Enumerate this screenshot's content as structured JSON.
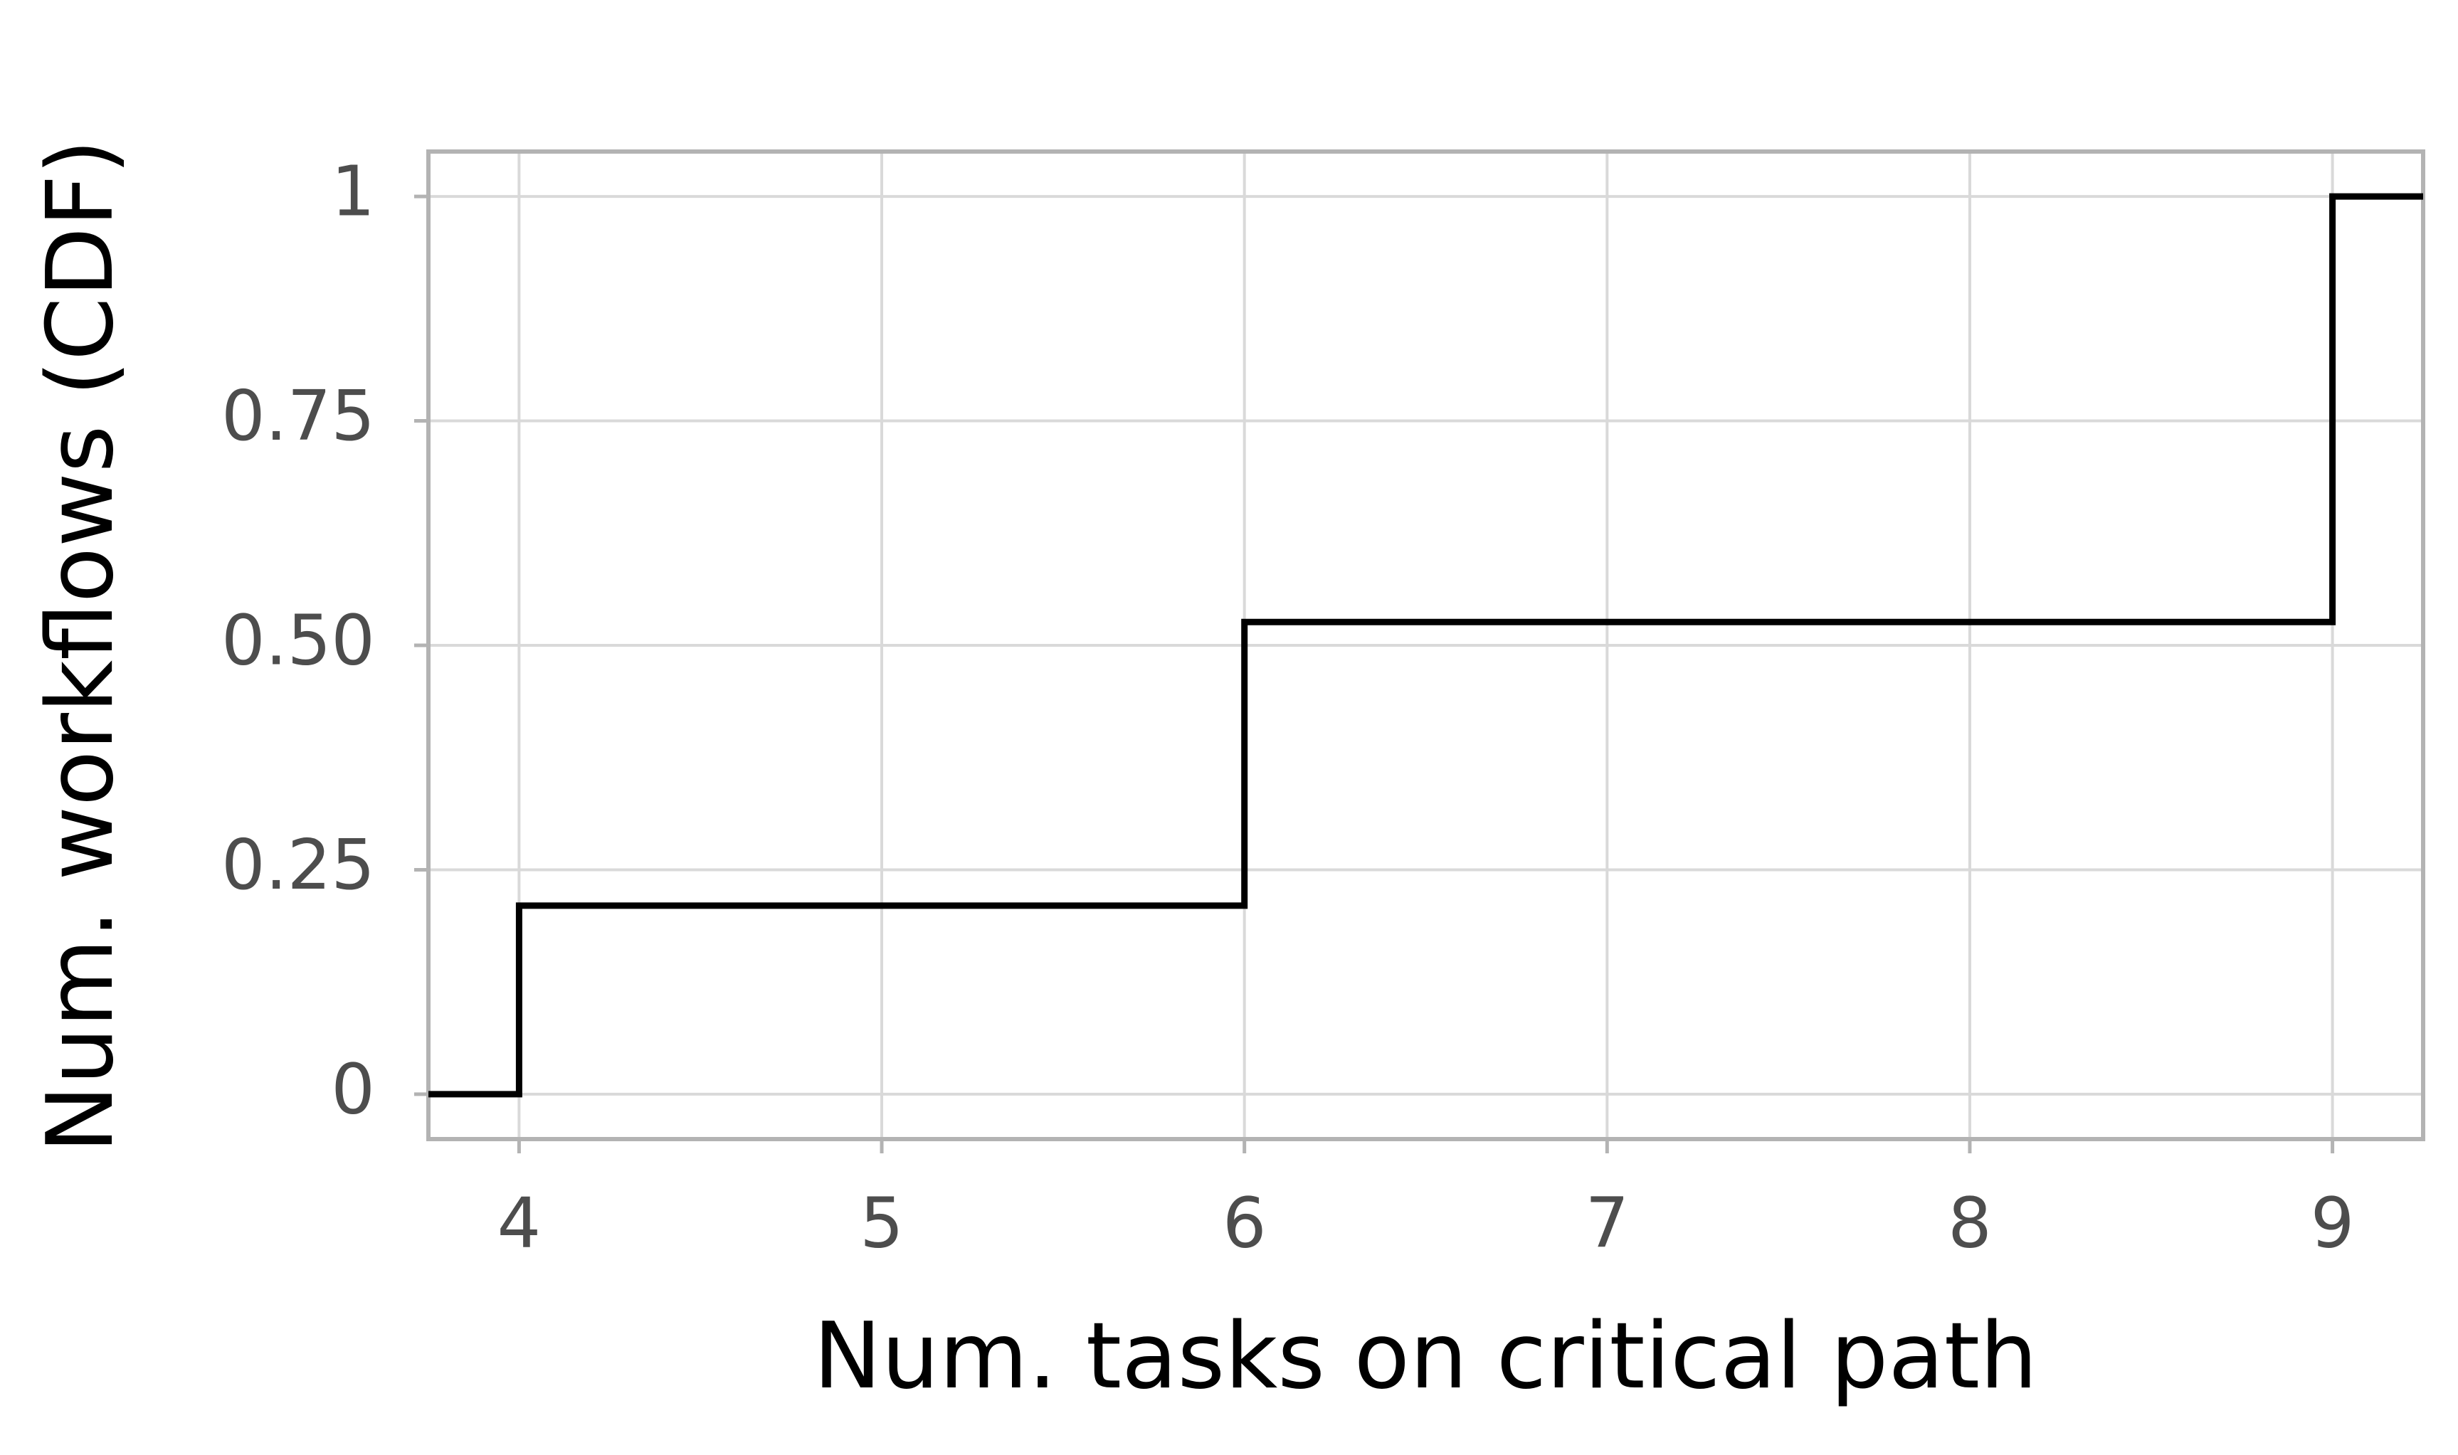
{
  "chart_data": {
    "type": "step",
    "x_label": "Num. tasks on critical path",
    "y_label": "Num. workflows (CDF)",
    "x": [
      3.75,
      4,
      6,
      9,
      9.25
    ],
    "values": [
      0,
      0.21,
      0.526,
      1,
      1
    ],
    "color": "#000000",
    "xlim": [
      3.75,
      9.25
    ],
    "xticks": [
      4,
      5,
      6,
      7,
      8,
      9
    ],
    "ylim": [
      -0.05,
      1.05
    ],
    "yticks": [
      0,
      0.25,
      {
        "value": 0.5,
        "label": "0.50"
      },
      0.75,
      1
    ],
    "grid": true
  }
}
